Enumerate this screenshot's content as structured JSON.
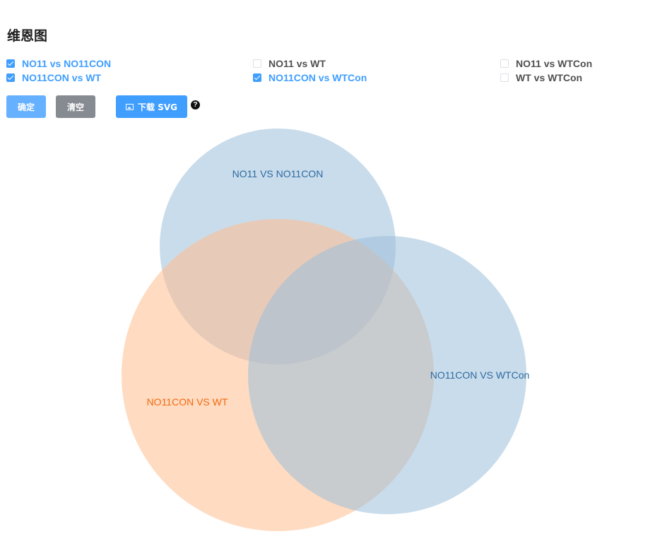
{
  "title": "维恩图",
  "checkboxes": [
    {
      "label": "NO11 vs NO11CON",
      "checked": true
    },
    {
      "label": "NO11 vs WT",
      "checked": false
    },
    {
      "label": "NO11 vs WTCon",
      "checked": false
    },
    {
      "label": "NO11CON vs WT",
      "checked": true
    },
    {
      "label": "NO11CON vs WTCon",
      "checked": true
    },
    {
      "label": "WT vs WTCon",
      "checked": false
    }
  ],
  "buttons": {
    "confirm": "确定",
    "clear": "清空",
    "download": "下载 SVG",
    "help": "?"
  },
  "venn": {
    "sets": [
      {
        "label": "NO11 VS NO11CON",
        "color": "#9dbfdb",
        "label_color": "#2e6aa1"
      },
      {
        "label": "NO11CON VS WT",
        "color": "#ffbd8e",
        "label_color": "#f26a10"
      },
      {
        "label": "NO11CON VS WTCon",
        "color": "#9dbfdb",
        "label_color": "#2e6aa1"
      }
    ]
  },
  "colors": {
    "primary": "#409eff",
    "primary_light": "#66b1ff",
    "info": "#868a91"
  }
}
